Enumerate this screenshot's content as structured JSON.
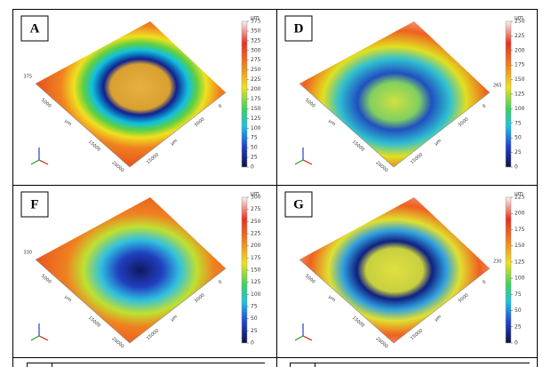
{
  "panels": [
    {
      "label": "A",
      "unit": "µm",
      "height_label": "375",
      "scale_ticks": [
        "375",
        "350",
        "325",
        "300",
        "275",
        "250",
        "225",
        "200",
        "175",
        "150",
        "125",
        "100",
        "75",
        "50",
        "25",
        "0"
      ],
      "left_axis": [
        "5000",
        "µm",
        "15000",
        "20000"
      ],
      "right_axis": [
        "15000",
        "µm",
        "5000",
        "0"
      ]
    },
    {
      "label": "D",
      "unit": "µm",
      "height_label": "265",
      "scale_ticks": [
        "250",
        "225",
        "200",
        "175",
        "150",
        "125",
        "100",
        "75",
        "50",
        "25",
        "0"
      ],
      "left_axis": [
        "5000",
        "µm",
        "15000",
        "20000"
      ],
      "right_axis": [
        "15000",
        "µm",
        "5000",
        "0"
      ]
    },
    {
      "label": "F",
      "unit": "µm",
      "height_label": "330",
      "scale_ticks": [
        "300",
        "275",
        "250",
        "225",
        "200",
        "175",
        "150",
        "125",
        "100",
        "75",
        "50",
        "25",
        "0"
      ],
      "left_axis": [
        "5000",
        "µm",
        "15000",
        "20000"
      ],
      "right_axis": [
        "15000",
        "µm",
        "5000",
        "0"
      ]
    },
    {
      "label": "G",
      "unit": "µm",
      "height_label": "230",
      "scale_ticks": [
        "225",
        "200",
        "175",
        "150",
        "125",
        "100",
        "75",
        "50",
        "25",
        "0"
      ],
      "left_axis": [
        "5000",
        "µm",
        "15000",
        "20000"
      ],
      "right_axis": [
        "15000",
        "µm",
        "5000",
        "0"
      ]
    }
  ]
}
